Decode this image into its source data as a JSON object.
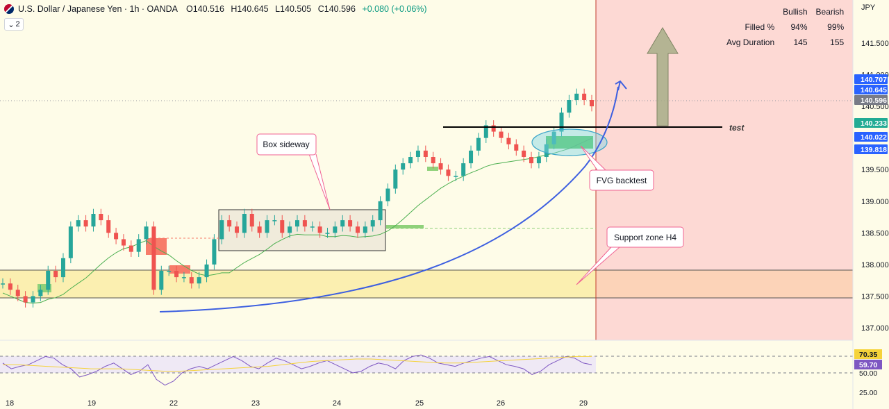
{
  "header": {
    "symbol": "U.S. Dollar / Japanese Yen · 1h · OANDA",
    "open": "O140.516",
    "high": "H140.645",
    "low": "L140.505",
    "close": "C140.596",
    "change": "+0.080 (+0.06%)",
    "indicator_count": "2"
  },
  "stats_table": {
    "col_bullish": "Bullish",
    "col_bearish": "Bearish",
    "rows": [
      {
        "label": "Filled %",
        "bullish": "94%",
        "bearish": "99%"
      },
      {
        "label": "Avg Duration",
        "bullish": "145",
        "bearish": "155"
      }
    ]
  },
  "annotations": {
    "box_sideway": "Box sideway",
    "fvg_backtest": "FVG backtest",
    "support_zone": "Support zone H4",
    "test": "test"
  },
  "colors": {
    "up": "#26a69a",
    "down": "#ef5350",
    "ma": "#4caf50",
    "curve": "#3d5fe0",
    "rsi": "#7e57c2",
    "rsi_ma": "#f5d33a",
    "support_fill": "#fbefb0",
    "future_fill": "#fdd9d4",
    "label_badge_blue": "#2962ff",
    "label_badge_green": "#22ab94"
  },
  "chart_data": {
    "type": "candlestick",
    "price_axis_unit": "JPY",
    "y_ticks": [
      "141.500",
      "141.000",
      "140.500",
      "139.500",
      "139.000",
      "138.500",
      "138.000",
      "137.500",
      "137.000"
    ],
    "ylim": [
      136.7,
      141.9
    ],
    "x_ticks": [
      "18",
      "19",
      "22",
      "23",
      "24",
      "25",
      "26",
      "29"
    ],
    "price_labels": [
      {
        "value": "140.707",
        "color": "#2962ff"
      },
      {
        "value": "140.645",
        "color": "#2962ff"
      },
      {
        "value": "140.596",
        "color": "#787b86"
      },
      {
        "value": "140.233",
        "color": "#22ab94"
      },
      {
        "value": "140.022",
        "color": "#2962ff"
      },
      {
        "value": "139.818",
        "color": "#2962ff"
      }
    ],
    "close_series": [
      137.7,
      137.6,
      137.5,
      137.4,
      137.5,
      137.6,
      137.9,
      137.8,
      138.1,
      138.6,
      138.7,
      138.6,
      138.8,
      138.7,
      138.5,
      138.4,
      138.3,
      138.2,
      138.4,
      138.6,
      137.6,
      137.9,
      137.9,
      137.8,
      137.8,
      137.7,
      137.8,
      138.0,
      138.4,
      138.7,
      138.6,
      138.5,
      138.8,
      138.6,
      138.5,
      138.7,
      138.7,
      138.5,
      138.6,
      138.7,
      138.6,
      138.6,
      138.5,
      138.5,
      138.6,
      138.7,
      138.6,
      138.5,
      138.6,
      138.7,
      139.0,
      139.2,
      139.5,
      139.6,
      139.7,
      139.8,
      139.7,
      139.6,
      139.5,
      139.4,
      139.4,
      139.6,
      139.8,
      140.0,
      140.2,
      140.1,
      140.0,
      139.9,
      139.8,
      139.7,
      139.6,
      139.7,
      139.9,
      140.1,
      140.4,
      140.6,
      140.7,
      140.6,
      140.5
    ],
    "rsi": {
      "levels": [
        "70.35",
        "59.70",
        "50.00",
        "25.00"
      ],
      "values": [
        62,
        55,
        58,
        60,
        65,
        70,
        68,
        60,
        55,
        45,
        48,
        52,
        58,
        62,
        55,
        48,
        52,
        60,
        42,
        35,
        40,
        50,
        55,
        58,
        55,
        60,
        65,
        70,
        65,
        58,
        55,
        62,
        68,
        65,
        60,
        55,
        58,
        62,
        65,
        60,
        55,
        50,
        52,
        58,
        62,
        60,
        55,
        65,
        70,
        72,
        68,
        62,
        60,
        58,
        62,
        65,
        68,
        70,
        65,
        60,
        58,
        55,
        48,
        52,
        60,
        65,
        70,
        68,
        62,
        60
      ],
      "ma_values": [
        60,
        60,
        59,
        58,
        57,
        56,
        55,
        55,
        55,
        54,
        53,
        52,
        52,
        53,
        54,
        55,
        56,
        57,
        58,
        60,
        62,
        64,
        65,
        66,
        67,
        67,
        66,
        65,
        64,
        63,
        62,
        62,
        63,
        64,
        65,
        66,
        67,
        68,
        69,
        70,
        70
      ]
    }
  }
}
